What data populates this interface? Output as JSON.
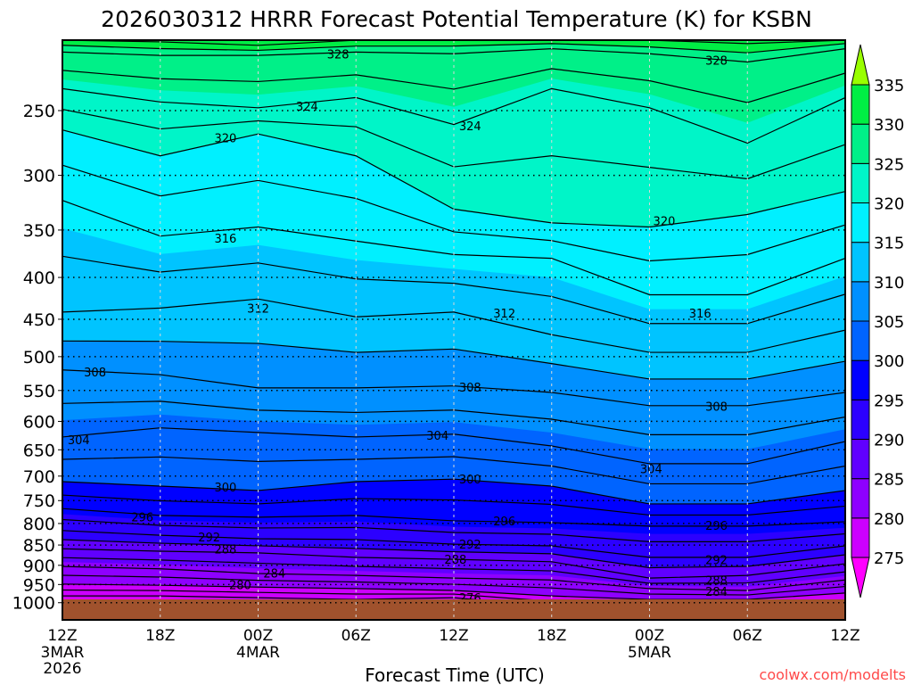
{
  "chart_data": {
    "type": "heatmap",
    "title": "2026030312 HRRR Forecast Potential Temperature (K) for KSBN",
    "xlabel": "Forecast Time (UTC)",
    "ylabel": "",
    "watermark": "coolwx.com/modelts",
    "xlim_hours": [
      0,
      48
    ],
    "ylim_hpa": [
      1050,
      203
    ],
    "surface_pressure_hpa": 991,
    "x_ticks": [
      {
        "hour": 0,
        "label": "12Z",
        "date": "3MAR",
        "year": "2026"
      },
      {
        "hour": 6,
        "label": "18Z"
      },
      {
        "hour": 12,
        "label": "00Z",
        "date": "4MAR"
      },
      {
        "hour": 18,
        "label": "06Z"
      },
      {
        "hour": 24,
        "label": "12Z"
      },
      {
        "hour": 30,
        "label": "18Z"
      },
      {
        "hour": 36,
        "label": "00Z",
        "date": "5MAR"
      },
      {
        "hour": 42,
        "label": "06Z"
      },
      {
        "hour": 48,
        "label": "12Z"
      }
    ],
    "y_ticks": [
      250,
      300,
      350,
      400,
      450,
      500,
      550,
      600,
      650,
      700,
      750,
      800,
      850,
      900,
      950,
      1000
    ],
    "colorbar": {
      "levels": [
        275,
        280,
        285,
        290,
        295,
        300,
        305,
        310,
        315,
        320,
        325,
        330,
        335
      ],
      "colors": [
        "#ff00ff",
        "#cc00ff",
        "#8e00ff",
        "#6000ff",
        "#2c00ff",
        "#0000ff",
        "#0064ff",
        "#0090ff",
        "#00c4ff",
        "#00f0ff",
        "#00f5c8",
        "#00f088",
        "#00ee44",
        "#99ff00"
      ]
    },
    "contour_interval_k": 2,
    "column_hours": [
      0,
      6,
      12,
      18,
      24,
      30,
      36,
      42,
      48
    ],
    "isentrope_levels_k": [
      276,
      280,
      284,
      288,
      292,
      296,
      300,
      304,
      308,
      312,
      316,
      320,
      324,
      328,
      332
    ],
    "isentrope_pressure_hpa": [
      [
        981,
        949,
        903,
        859,
        816,
        767,
        711,
        627,
        519,
        441,
        322,
        264,
        235,
        212,
        204
      ],
      [
        981,
        952,
        909,
        865,
        827,
        782,
        720,
        611,
        526,
        436,
        356,
        284,
        244,
        214,
        206
      ],
      [
        986,
        957,
        921,
        869,
        835,
        786,
        729,
        619,
        546,
        425,
        347,
        267,
        248,
        214,
        208
      ],
      [
        991,
        961,
        926,
        880,
        837,
        782,
        711,
        627,
        546,
        447,
        361,
        284,
        241,
        212,
        205
      ],
      [
        986,
        966,
        933,
        885,
        848,
        794,
        706,
        622,
        543,
        441,
        375,
        330,
        260,
        213,
        204
      ],
      [
        1011,
        981,
        938,
        891,
        852,
        798,
        720,
        643,
        553,
        470,
        379,
        343,
        235,
        210,
        204
      ],
      [
        1036,
        991,
        961,
        933,
        880,
        806,
        757,
        676,
        574,
        494,
        420,
        347,
        248,
        213,
        205
      ],
      [
        1036,
        991,
        966,
        926,
        880,
        806,
        757,
        676,
        574,
        494,
        420,
        335,
        274,
        218,
        207
      ],
      [
        1011,
        973,
        938,
        896,
        852,
        796,
        729,
        635,
        553,
        464,
        379,
        314,
        241,
        210,
        204
      ]
    ],
    "contour_labels": [
      {
        "value": "328",
        "hour": 16.9,
        "p": 213
      },
      {
        "value": "328",
        "hour": 40.1,
        "p": 217
      },
      {
        "value": "324",
        "hour": 15.0,
        "p": 247
      },
      {
        "value": "324",
        "hour": 25.0,
        "p": 261
      },
      {
        "value": "320",
        "hour": 10.0,
        "p": 270
      },
      {
        "value": "320",
        "hour": 36.9,
        "p": 341
      },
      {
        "value": "316",
        "hour": 10.0,
        "p": 358
      },
      {
        "value": "316",
        "hour": 39.1,
        "p": 442
      },
      {
        "value": "312",
        "hour": 12.0,
        "p": 436
      },
      {
        "value": "312",
        "hour": 27.1,
        "p": 442
      },
      {
        "value": "308",
        "hour": 2.0,
        "p": 522
      },
      {
        "value": "308",
        "hour": 25.0,
        "p": 545
      },
      {
        "value": "308",
        "hour": 40.1,
        "p": 575
      },
      {
        "value": "304",
        "hour": 1.0,
        "p": 632
      },
      {
        "value": "304",
        "hour": 23.0,
        "p": 624
      },
      {
        "value": "304",
        "hour": 36.1,
        "p": 686
      },
      {
        "value": "300",
        "hour": 10.0,
        "p": 722
      },
      {
        "value": "300",
        "hour": 25.0,
        "p": 706
      },
      {
        "value": "296",
        "hour": 4.9,
        "p": 785
      },
      {
        "value": "296",
        "hour": 27.1,
        "p": 794
      },
      {
        "value": "296",
        "hour": 40.1,
        "p": 804
      },
      {
        "value": "292",
        "hour": 9.0,
        "p": 831
      },
      {
        "value": "292",
        "hour": 25.0,
        "p": 848
      },
      {
        "value": "292",
        "hour": 40.1,
        "p": 886
      },
      {
        "value": "288",
        "hour": 10.0,
        "p": 859
      },
      {
        "value": "288",
        "hour": 24.1,
        "p": 885
      },
      {
        "value": "288",
        "hour": 40.1,
        "p": 938
      },
      {
        "value": "284",
        "hour": 13.0,
        "p": 920
      },
      {
        "value": "284",
        "hour": 40.1,
        "p": 968
      },
      {
        "value": "280",
        "hour": 10.9,
        "p": 951
      },
      {
        "value": "276",
        "hour": 25.0,
        "p": 986
      }
    ]
  }
}
